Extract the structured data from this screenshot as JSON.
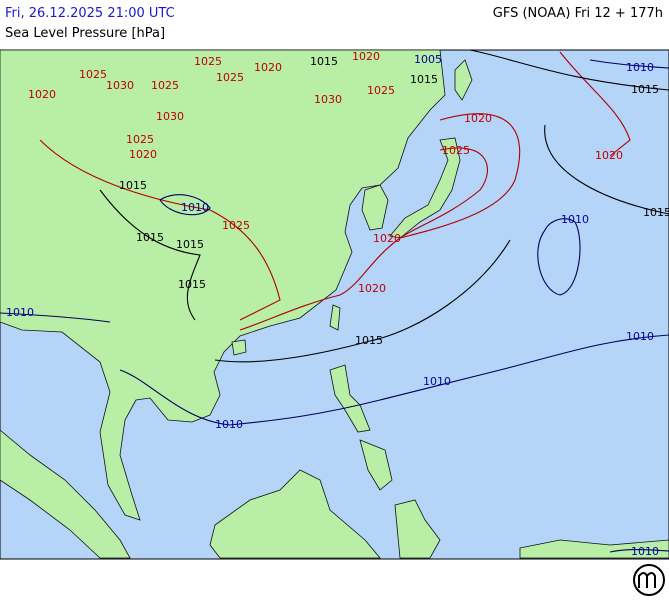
{
  "header": {
    "datetime": "Fri, 26.12.2025 21:00 UTC",
    "parameter": "Sea Level Pressure [hPa]",
    "model": "GFS (NOAA) Fri 12 + 177h"
  },
  "contour_labels": [
    1025,
    1020,
    1015,
    1020,
    1005,
    1015,
    1010,
    1015,
    1025,
    1030,
    1020,
    1025,
    1025,
    1030,
    1025,
    1030,
    1025,
    1020,
    1020,
    1025,
    1020,
    1015,
    1010,
    1025,
    1015,
    1015,
    1010,
    1015,
    1020,
    1015,
    1020,
    1010,
    1015,
    1010,
    1010,
    1010,
    1010
  ]
}
